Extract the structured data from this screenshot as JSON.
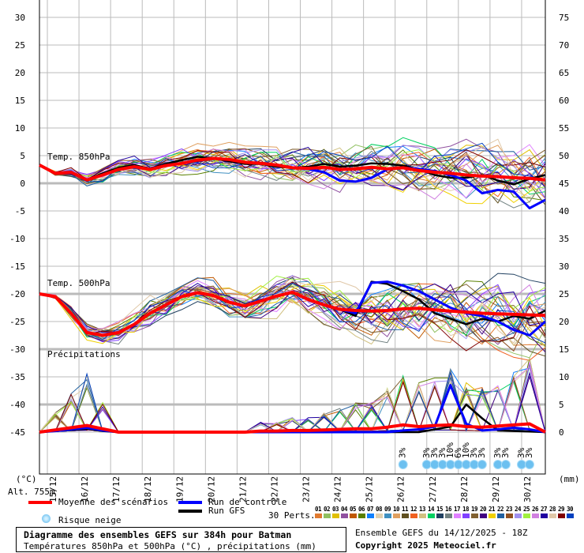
{
  "header": {
    "title": "Diagramme des ensembles GEFS sur 384h pour Batman",
    "subtitle": "Températures 850hPa et 500hPa (°C) , précipitations (mm)",
    "run_info": "Ensemble GEFS du 14/12/2025 - 18Z",
    "copyright": "Copyright 2025 Meteociel.fr"
  },
  "labels": {
    "unit_left": "(°C)",
    "unit_right": "(mm)",
    "altitude": "Alt. 755m",
    "temp850": "Temp. 850hPa",
    "temp500": "Temp. 500hPa",
    "precip": "Précipitations"
  },
  "legend": {
    "mean": "Moyenne des scénarios",
    "control": "Run de contrôle",
    "gfs": "Run GFS",
    "snow": "Risque neige",
    "perts": "30 Perts.",
    "mean_color": "#ff0000",
    "control_color": "#0000ff",
    "gfs_color": "#000000",
    "pert_numbers": [
      "01",
      "02",
      "03",
      "04",
      "05",
      "06",
      "07",
      "08",
      "09",
      "10",
      "11",
      "12",
      "13",
      "14",
      "15",
      "16",
      "17",
      "18",
      "19",
      "20",
      "21",
      "22",
      "23",
      "24",
      "25",
      "26",
      "27",
      "28",
      "29",
      "30"
    ],
    "pert_colors": [
      "#e07a30",
      "#90c060",
      "#e0c000",
      "#9050a0",
      "#c05800",
      "#5a8000",
      "#1080ff",
      "#e0d0b0",
      "#4090c0",
      "#e0a060",
      "#605020",
      "#f06020",
      "#d0c080",
      "#00d060",
      "#204060",
      "#708080",
      "#e080ff",
      "#8040ff",
      "#806030",
      "#400080",
      "#f0d000",
      "#2060a0",
      "#905020",
      "#a090f0",
      "#a0f040",
      "#d080e0",
      "#2000a0",
      "#e0c8a8",
      "#800000",
      "#0040c0"
    ]
  },
  "chart_data": {
    "type": "line",
    "title": "Diagramme des ensembles GEFS sur 384h pour Batman",
    "x_unit": "hours since 14/12/2025 18Z",
    "x_step_hours": 12,
    "xlim": [
      0,
      384
    ],
    "x_tick_labels": [
      "15/12",
      "16/12",
      "17/12",
      "18/12",
      "19/12",
      "20/12",
      "21/12",
      "22/12",
      "23/12",
      "24/12",
      "25/12",
      "26/12",
      "27/12",
      "28/12",
      "29/12",
      "30/12"
    ],
    "x_tick_hours": [
      6,
      30,
      54,
      78,
      102,
      126,
      150,
      174,
      198,
      222,
      246,
      270,
      294,
      318,
      342,
      366
    ],
    "y_left": {
      "label": "(°C)",
      "ylim": [
        -45,
        30
      ],
      "ticks": [
        30,
        25,
        20,
        15,
        10,
        5,
        0,
        -5,
        -10,
        -15,
        -20,
        -25,
        -30,
        -35,
        -40,
        -45
      ]
    },
    "y_right": {
      "label": "(mm)",
      "ylim": [
        0,
        75
      ],
      "ticks": [
        75,
        70,
        65,
        60,
        55,
        50,
        45,
        40,
        35,
        30,
        25,
        20,
        15,
        10,
        5,
        0
      ]
    },
    "grid": true,
    "series": [
      {
        "name": "Temp. 850hPa - Moyenne",
        "values": [
          3.3,
          1.8,
          2.0,
          0.6,
          1.5,
          2.5,
          3.0,
          2.5,
          3.2,
          3.6,
          4.2,
          4.5,
          4.3,
          3.8,
          3.6,
          3.3,
          2.8,
          2.7,
          2.9,
          2.5,
          2.6,
          2.9,
          2.6,
          2.8,
          2.3,
          2.0,
          1.8,
          1.5,
          1.3,
          1.2,
          1.0,
          0.9,
          0.6
        ]
      },
      {
        "name": "Temp. 850hPa - Contrôle",
        "values": [
          3.3,
          1.8,
          2.0,
          0.6,
          1.5,
          2.5,
          3.0,
          2.5,
          3.2,
          3.6,
          4.2,
          4.5,
          4.3,
          3.8,
          3.6,
          3.3,
          2.8,
          2.6,
          2.0,
          0.5,
          0.3,
          1.0,
          2.5,
          2.8,
          2.6,
          2.2,
          1.5,
          0.5,
          -1.8,
          -1.2,
          -1.5,
          -4.5,
          -3.0
        ]
      },
      {
        "name": "Temp. 850hPa - GFS",
        "values": [
          3.3,
          1.8,
          2.0,
          0.6,
          1.8,
          2.8,
          3.3,
          2.6,
          3.5,
          4.2,
          4.8,
          4.5,
          4.0,
          3.5,
          3.5,
          3.0,
          2.8,
          3.0,
          3.5,
          3.0,
          3.2,
          3.6,
          3.5,
          3.2,
          2.5,
          1.5,
          1.0,
          1.0,
          1.5,
          0.5,
          -0.2,
          0.8,
          1.5
        ]
      },
      {
        "name": "Temp. 500hPa - Moyenne",
        "values": [
          -20,
          -20.5,
          -23.5,
          -27,
          -27.5,
          -27,
          -25.5,
          -23.5,
          -22,
          -20.5,
          -19.8,
          -20.3,
          -21.5,
          -22.2,
          -21.3,
          -20.4,
          -19.7,
          -21,
          -22,
          -22.8,
          -23,
          -23.1,
          -23,
          -22.7,
          -22.6,
          -22.9,
          -23.1,
          -23.3,
          -23.5,
          -23.6,
          -23.7,
          -23.8,
          -23.9
        ]
      },
      {
        "name": "Temp. 500hPa - Contrôle",
        "values": [
          -20,
          -20.5,
          -23.5,
          -27,
          -27.5,
          -27,
          -25.5,
          -23.5,
          -22,
          -20.5,
          -19.8,
          -20.3,
          -21.5,
          -22.2,
          -21.3,
          -20.4,
          -19.7,
          -21,
          -22,
          -22.8,
          -23.5,
          -18,
          -17.8,
          -18.5,
          -19.5,
          -21,
          -22.5,
          -23.5,
          -24,
          -25,
          -26.5,
          -27.5,
          -25
        ]
      },
      {
        "name": "Temp. 500hPa - GFS",
        "values": [
          -20,
          -20.5,
          -23.5,
          -27,
          -27.5,
          -27,
          -25.5,
          -23.5,
          -22,
          -20.5,
          -19.8,
          -20.3,
          -21.5,
          -22.2,
          -21.3,
          -20.4,
          -19.7,
          -21,
          -22,
          -22.8,
          -24,
          -17.8,
          -18.2,
          -19.5,
          -21,
          -23.5,
          -24.5,
          -25.5,
          -24.5,
          -25,
          -24,
          -24.5,
          -23
        ]
      },
      {
        "name": "Précipitations - Moyenne (mm)",
        "values": [
          0,
          0.4,
          0.8,
          1.2,
          0.6,
          0,
          0,
          0,
          0,
          0,
          0,
          0,
          0,
          0,
          0.2,
          0.2,
          0.3,
          0.3,
          0.4,
          0.5,
          0.6,
          0.6,
          0.9,
          1.3,
          1.0,
          1.2,
          1.3,
          1.0,
          0.9,
          1.1,
          1.3,
          1.5,
          0
        ]
      },
      {
        "name": "Précipitations - Contrôle (mm)",
        "values": [
          0,
          0.2,
          0.5,
          0.8,
          0.3,
          0,
          0,
          0,
          0,
          0,
          0,
          0,
          0,
          0,
          0,
          0,
          0,
          0,
          0,
          0,
          0,
          0,
          0,
          0.3,
          0.5,
          1.0,
          8.5,
          1.5,
          0.3,
          0.5,
          0.8,
          0.5,
          0
        ]
      },
      {
        "name": "Précipitations - GFS (mm)",
        "values": [
          0,
          0.2,
          0.4,
          0.6,
          0.2,
          0,
          0,
          0,
          0,
          0,
          0,
          0,
          0,
          0,
          0,
          0,
          0,
          0,
          0,
          0,
          0,
          0,
          0,
          0,
          0,
          0.5,
          1.0,
          5.0,
          2.5,
          0.3,
          0.2,
          0.1,
          0
        ]
      }
    ],
    "ensemble_spread_850": [
      0,
      0.3,
      0.6,
      0.8,
      1.0,
      1.0,
      1.1,
      1.2,
      1.3,
      1.4,
      1.5,
      1.6,
      1.8,
      1.9,
      2.0,
      2.1,
      2.2,
      2.3,
      2.4,
      2.5,
      2.6,
      2.7,
      2.8,
      2.9,
      3.0,
      3.1,
      3.2,
      3.3,
      3.4,
      3.5,
      3.6,
      3.7,
      3.8
    ],
    "ensemble_spread_500": [
      0,
      0.3,
      0.8,
      1.0,
      1.1,
      1.3,
      1.6,
      1.8,
      1.7,
      1.5,
      1.5,
      1.6,
      1.8,
      2.0,
      2.0,
      2.1,
      2.2,
      2.3,
      2.4,
      2.6,
      2.8,
      3.0,
      3.2,
      3.4,
      3.5,
      3.6,
      3.7,
      3.8,
      3.9,
      4.0,
      4.1,
      4.2,
      4.3
    ],
    "snow_risk": [
      {
        "hour": 276,
        "pct": "3%"
      },
      {
        "hour": 294,
        "pct": "3%"
      },
      {
        "hour": 300,
        "pct": "3%"
      },
      {
        "hour": 306,
        "pct": "3%"
      },
      {
        "hour": 312,
        "pct": "10%"
      },
      {
        "hour": 318,
        "pct": "6%"
      },
      {
        "hour": 324,
        "pct": "10%"
      },
      {
        "hour": 330,
        "pct": "3%"
      },
      {
        "hour": 336,
        "pct": "3%"
      },
      {
        "hour": 348,
        "pct": "3%"
      },
      {
        "hour": 354,
        "pct": "3%"
      },
      {
        "hour": 366,
        "pct": "3%"
      },
      {
        "hour": 372,
        "pct": "3%"
      }
    ]
  }
}
